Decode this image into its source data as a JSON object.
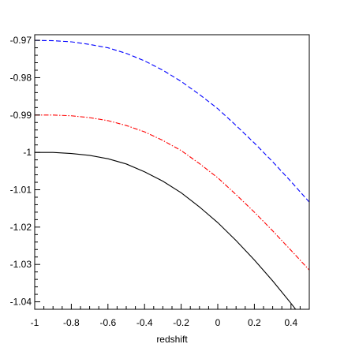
{
  "chart_data": {
    "type": "line",
    "title": "",
    "xlabel": "redshift",
    "ylabel": "",
    "xlim": [
      -1,
      0.5
    ],
    "ylim": [
      -1.042,
      -0.9685
    ],
    "grid": false,
    "legend": "none",
    "x_ticks": [
      -1,
      -0.8,
      -0.6,
      -0.4,
      -0.2,
      0,
      0.2,
      0.4
    ],
    "x_tick_labels": [
      "-1",
      "-0.8",
      "-0.6",
      "-0.4",
      "-0.2",
      "0",
      "0.2",
      "0.4"
    ],
    "y_ticks": [
      -0.97,
      -0.98,
      -0.99,
      -1,
      -1.01,
      -1.02,
      -1.03,
      -1.04
    ],
    "y_tick_labels": [
      "-0.97",
      "-0.98",
      "-0.99",
      "-1",
      "-1.01",
      "-1.02",
      "-1.03",
      "-1.04"
    ],
    "x": [
      -1,
      -0.9,
      -0.8,
      -0.7,
      -0.6,
      -0.5,
      -0.4,
      -0.3,
      -0.2,
      -0.1,
      0,
      0.1,
      0.2,
      0.3,
      0.4,
      0.5
    ],
    "series": [
      {
        "color": "#0000ff",
        "dash": "dashed",
        "values": [
          -0.97,
          -0.9701,
          -0.9704,
          -0.9711,
          -0.972,
          -0.9735,
          -0.9755,
          -0.978,
          -0.981,
          -0.9845,
          -0.9883,
          -0.9928,
          -0.9975,
          -1.0025,
          -1.0078,
          -1.0133
        ]
      },
      {
        "color": "#ff0000",
        "dash": "dashdot",
        "values": [
          -0.99,
          -0.99,
          -0.9902,
          -0.9907,
          -0.9915,
          -0.9928,
          -0.9945,
          -0.9968,
          -0.9995,
          -1.003,
          -1.0068,
          -1.0113,
          -1.016,
          -1.021,
          -1.0262,
          -1.0315
        ]
      },
      {
        "color": "#000000",
        "dash": "solid",
        "values": [
          -1.0,
          -1.0,
          -1.0003,
          -1.0008,
          -1.0017,
          -1.0031,
          -1.0052,
          -1.0077,
          -1.0108,
          -1.0146,
          -1.0188,
          -1.0236,
          -1.0288,
          -1.0344,
          -1.0404,
          -1.0467
        ]
      }
    ]
  }
}
